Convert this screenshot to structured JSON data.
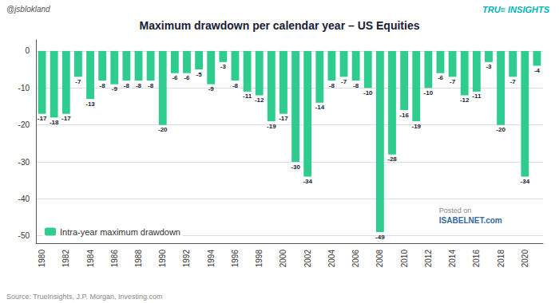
{
  "chart_data": {
    "type": "bar",
    "title": "Maximum drawdown per calendar year – US Equities",
    "categories": [
      "1980",
      null,
      "1982",
      null,
      "1984",
      null,
      "1986",
      null,
      "1988",
      null,
      "1990",
      null,
      "1992",
      null,
      "1994",
      null,
      "1996",
      null,
      "1998",
      null,
      "2000",
      null,
      "2002",
      null,
      "2004",
      null,
      "2006",
      null,
      "2008",
      null,
      "2010",
      null,
      "2012",
      null,
      "2014",
      null,
      "2016",
      null,
      "2018",
      null,
      "2020",
      null
    ],
    "series": [
      {
        "name": "Intra-year maximum drawdown",
        "color": "#2ecc8e",
        "values": [
          -17,
          -18,
          -17,
          -7,
          -13,
          -8,
          -9,
          -8,
          -8,
          -8,
          -20,
          -6,
          -6,
          -5,
          -9,
          -3,
          -8,
          -11,
          -12,
          -19,
          -17,
          -30,
          -34,
          -14,
          -8,
          -7,
          -8,
          -10,
          -49,
          -28,
          -16,
          -19,
          -10,
          -6,
          -7,
          -12,
          -11,
          -3,
          -20,
          -7,
          -34,
          -4
        ]
      }
    ],
    "ylim": [
      -52,
      3
    ],
    "yticks": [
      0,
      -10,
      -20,
      -30,
      -40,
      -50
    ],
    "grid": true,
    "legend": "lower left",
    "data_labels": true,
    "annotations": [
      "@jsblokland",
      "TRU≡ INSIGHTS",
      "Source: TrueInsights, J.P. Morgan, Investing.com",
      "Posted on",
      "ISABELNET.com"
    ]
  }
}
